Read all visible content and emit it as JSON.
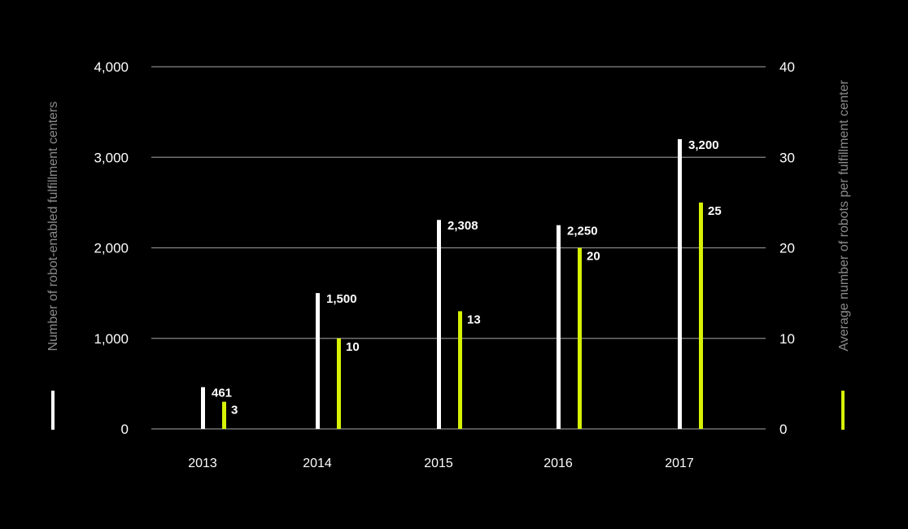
{
  "chart_data": {
    "type": "bar",
    "categories": [
      "2013",
      "2014",
      "2015",
      "2016",
      "2017"
    ],
    "series": [
      {
        "name": "Number of robot-enabled fulfillment centers",
        "axis": "left",
        "color": "#ffffff",
        "values": [
          461,
          1500,
          2308,
          2250,
          3200
        ],
        "labels": [
          "461",
          "1,500",
          "2,308",
          "2,250",
          "3,200"
        ]
      },
      {
        "name": "Average number of robots per fulfillment center",
        "axis": "right",
        "color": "#d7f205",
        "values": [
          3,
          10,
          13,
          20,
          25
        ],
        "labels": [
          "3",
          "10",
          "13",
          "20",
          "25"
        ]
      }
    ],
    "y_left": {
      "label": "Number of robot-enabled fulfillment centers",
      "lim": [
        0,
        4000
      ],
      "ticks": [
        0,
        1000,
        2000,
        3000,
        4000
      ],
      "tick_labels": [
        "0",
        "1,000",
        "2,000",
        "3,000",
        "4,000"
      ]
    },
    "y_right": {
      "label": "Average number of robots per fulfillment center",
      "lim": [
        0,
        40
      ],
      "ticks": [
        0,
        10,
        20,
        30,
        40
      ],
      "tick_labels": [
        "0",
        "10",
        "20",
        "30",
        "40"
      ]
    },
    "grid": true,
    "background": "#000000",
    "grid_color": "#888888",
    "axis_title_color": "#8a8a8a"
  }
}
